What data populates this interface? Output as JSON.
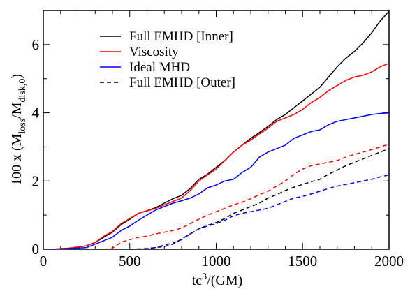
{
  "chart_data": {
    "type": "line",
    "xlabel": "tc³/(GM)",
    "ylabel": "100 x (M_loss/M_disk,0)",
    "xlim": [
      0,
      2000
    ],
    "ylim": [
      0,
      7
    ],
    "x_ticks": [
      0,
      500,
      1000,
      1500,
      2000
    ],
    "y_ticks": [
      0,
      2,
      4,
      6
    ],
    "x_tick_labels": [
      "0",
      "500",
      "1000",
      "1500",
      "2000"
    ],
    "y_tick_labels": [
      "0",
      "2",
      "4",
      "6"
    ],
    "legend_position": "top-left",
    "series": [
      {
        "name": "Full EMHD [Inner]",
        "color": "#000000",
        "dash": "solid",
        "x": [
          50,
          150,
          250,
          300,
          350,
          400,
          450,
          500,
          550,
          600,
          650,
          700,
          750,
          800,
          850,
          900,
          950,
          1000,
          1050,
          1100,
          1150,
          1200,
          1250,
          1300,
          1350,
          1400,
          1450,
          1500,
          1550,
          1600,
          1650,
          1700,
          1750,
          1800,
          1850,
          1900,
          1950,
          2000
        ],
        "y": [
          0.0,
          0.03,
          0.1,
          0.2,
          0.35,
          0.5,
          0.72,
          0.88,
          1.05,
          1.13,
          1.22,
          1.35,
          1.48,
          1.58,
          1.78,
          2.05,
          2.2,
          2.4,
          2.6,
          2.85,
          3.05,
          3.25,
          3.42,
          3.6,
          3.8,
          3.95,
          4.15,
          4.35,
          4.55,
          4.75,
          5.05,
          5.35,
          5.6,
          5.8,
          6.05,
          6.35,
          6.7,
          6.98
        ]
      },
      {
        "name": "Viscosity",
        "color": "#ff0000",
        "dash": "solid",
        "x": [
          50,
          150,
          250,
          300,
          350,
          400,
          450,
          500,
          550,
          600,
          650,
          700,
          750,
          800,
          850,
          900,
          950,
          1000,
          1050,
          1100,
          1150,
          1200,
          1250,
          1300,
          1350,
          1400,
          1450,
          1500,
          1550,
          1600,
          1650,
          1700,
          1750,
          1800,
          1850,
          1900,
          1950,
          2000
        ],
        "y": [
          0.0,
          0.03,
          0.1,
          0.2,
          0.38,
          0.52,
          0.75,
          0.9,
          1.05,
          1.12,
          1.2,
          1.3,
          1.4,
          1.5,
          1.72,
          2.0,
          2.18,
          2.35,
          2.6,
          2.85,
          3.05,
          3.2,
          3.38,
          3.55,
          3.75,
          3.85,
          3.95,
          4.1,
          4.3,
          4.45,
          4.65,
          4.8,
          4.95,
          5.05,
          5.1,
          5.2,
          5.35,
          5.45
        ]
      },
      {
        "name": "Ideal MHD",
        "color": "#0000ff",
        "dash": "solid",
        "x": [
          50,
          150,
          250,
          300,
          350,
          400,
          450,
          500,
          550,
          600,
          650,
          700,
          750,
          800,
          850,
          900,
          950,
          1000,
          1050,
          1100,
          1150,
          1200,
          1250,
          1300,
          1350,
          1400,
          1450,
          1500,
          1550,
          1600,
          1650,
          1700,
          1750,
          1800,
          1850,
          1900,
          1950,
          2000
        ],
        "y": [
          0.0,
          0.02,
          0.05,
          0.15,
          0.25,
          0.35,
          0.55,
          0.68,
          0.85,
          1.0,
          1.15,
          1.25,
          1.35,
          1.42,
          1.5,
          1.62,
          1.8,
          1.88,
          2.0,
          2.05,
          2.25,
          2.4,
          2.7,
          2.85,
          2.95,
          3.05,
          3.25,
          3.35,
          3.45,
          3.5,
          3.65,
          3.75,
          3.8,
          3.85,
          3.9,
          3.95,
          3.98,
          4.0
        ]
      },
      {
        "name": "Full EMHD [Outer]",
        "color": "#000000",
        "dash": "dashed",
        "x": [
          500,
          600,
          700,
          750,
          800,
          850,
          900,
          950,
          1000,
          1050,
          1100,
          1150,
          1200,
          1250,
          1300,
          1350,
          1400,
          1450,
          1500,
          1550,
          1600,
          1650,
          1700,
          1750,
          1800,
          1850,
          1900,
          1950,
          2000
        ],
        "y": [
          0.0,
          0.02,
          0.08,
          0.15,
          0.3,
          0.45,
          0.6,
          0.7,
          0.78,
          0.9,
          1.05,
          1.15,
          1.25,
          1.35,
          1.5,
          1.6,
          1.72,
          1.82,
          1.9,
          1.98,
          2.05,
          2.2,
          2.32,
          2.45,
          2.55,
          2.65,
          2.75,
          2.85,
          2.95
        ]
      },
      {
        "name": "",
        "color": "#ff0000",
        "dash": "dashed",
        "x": [
          390,
          420,
          450,
          500,
          550,
          600,
          650,
          700,
          750,
          800,
          850,
          900,
          950,
          1000,
          1050,
          1100,
          1150,
          1200,
          1250,
          1300,
          1350,
          1400,
          1450,
          1500,
          1550,
          1600,
          1650,
          1700,
          1750,
          1800,
          1850,
          1900,
          1950,
          2000
        ],
        "y": [
          0.0,
          0.1,
          0.2,
          0.28,
          0.35,
          0.38,
          0.45,
          0.5,
          0.55,
          0.62,
          0.75,
          0.88,
          1.0,
          1.1,
          1.2,
          1.3,
          1.38,
          1.48,
          1.6,
          1.7,
          1.85,
          2.0,
          2.2,
          2.35,
          2.45,
          2.5,
          2.55,
          2.6,
          2.7,
          2.78,
          2.85,
          2.92,
          3.0,
          3.08
        ]
      },
      {
        "name": "",
        "color": "#0000ff",
        "dash": "dashed",
        "x": [
          590,
          650,
          700,
          750,
          800,
          850,
          900,
          950,
          1000,
          1050,
          1100,
          1150,
          1200,
          1250,
          1300,
          1350,
          1400,
          1450,
          1500,
          1550,
          1600,
          1650,
          1700,
          1750,
          1800,
          1850,
          1900,
          1950,
          2000
        ],
        "y": [
          0.0,
          0.05,
          0.12,
          0.18,
          0.28,
          0.45,
          0.6,
          0.68,
          0.75,
          0.85,
          0.98,
          1.05,
          1.1,
          1.15,
          1.2,
          1.3,
          1.4,
          1.5,
          1.55,
          1.62,
          1.7,
          1.78,
          1.85,
          1.9,
          1.95,
          2.0,
          2.05,
          2.12,
          2.18
        ]
      }
    ]
  }
}
